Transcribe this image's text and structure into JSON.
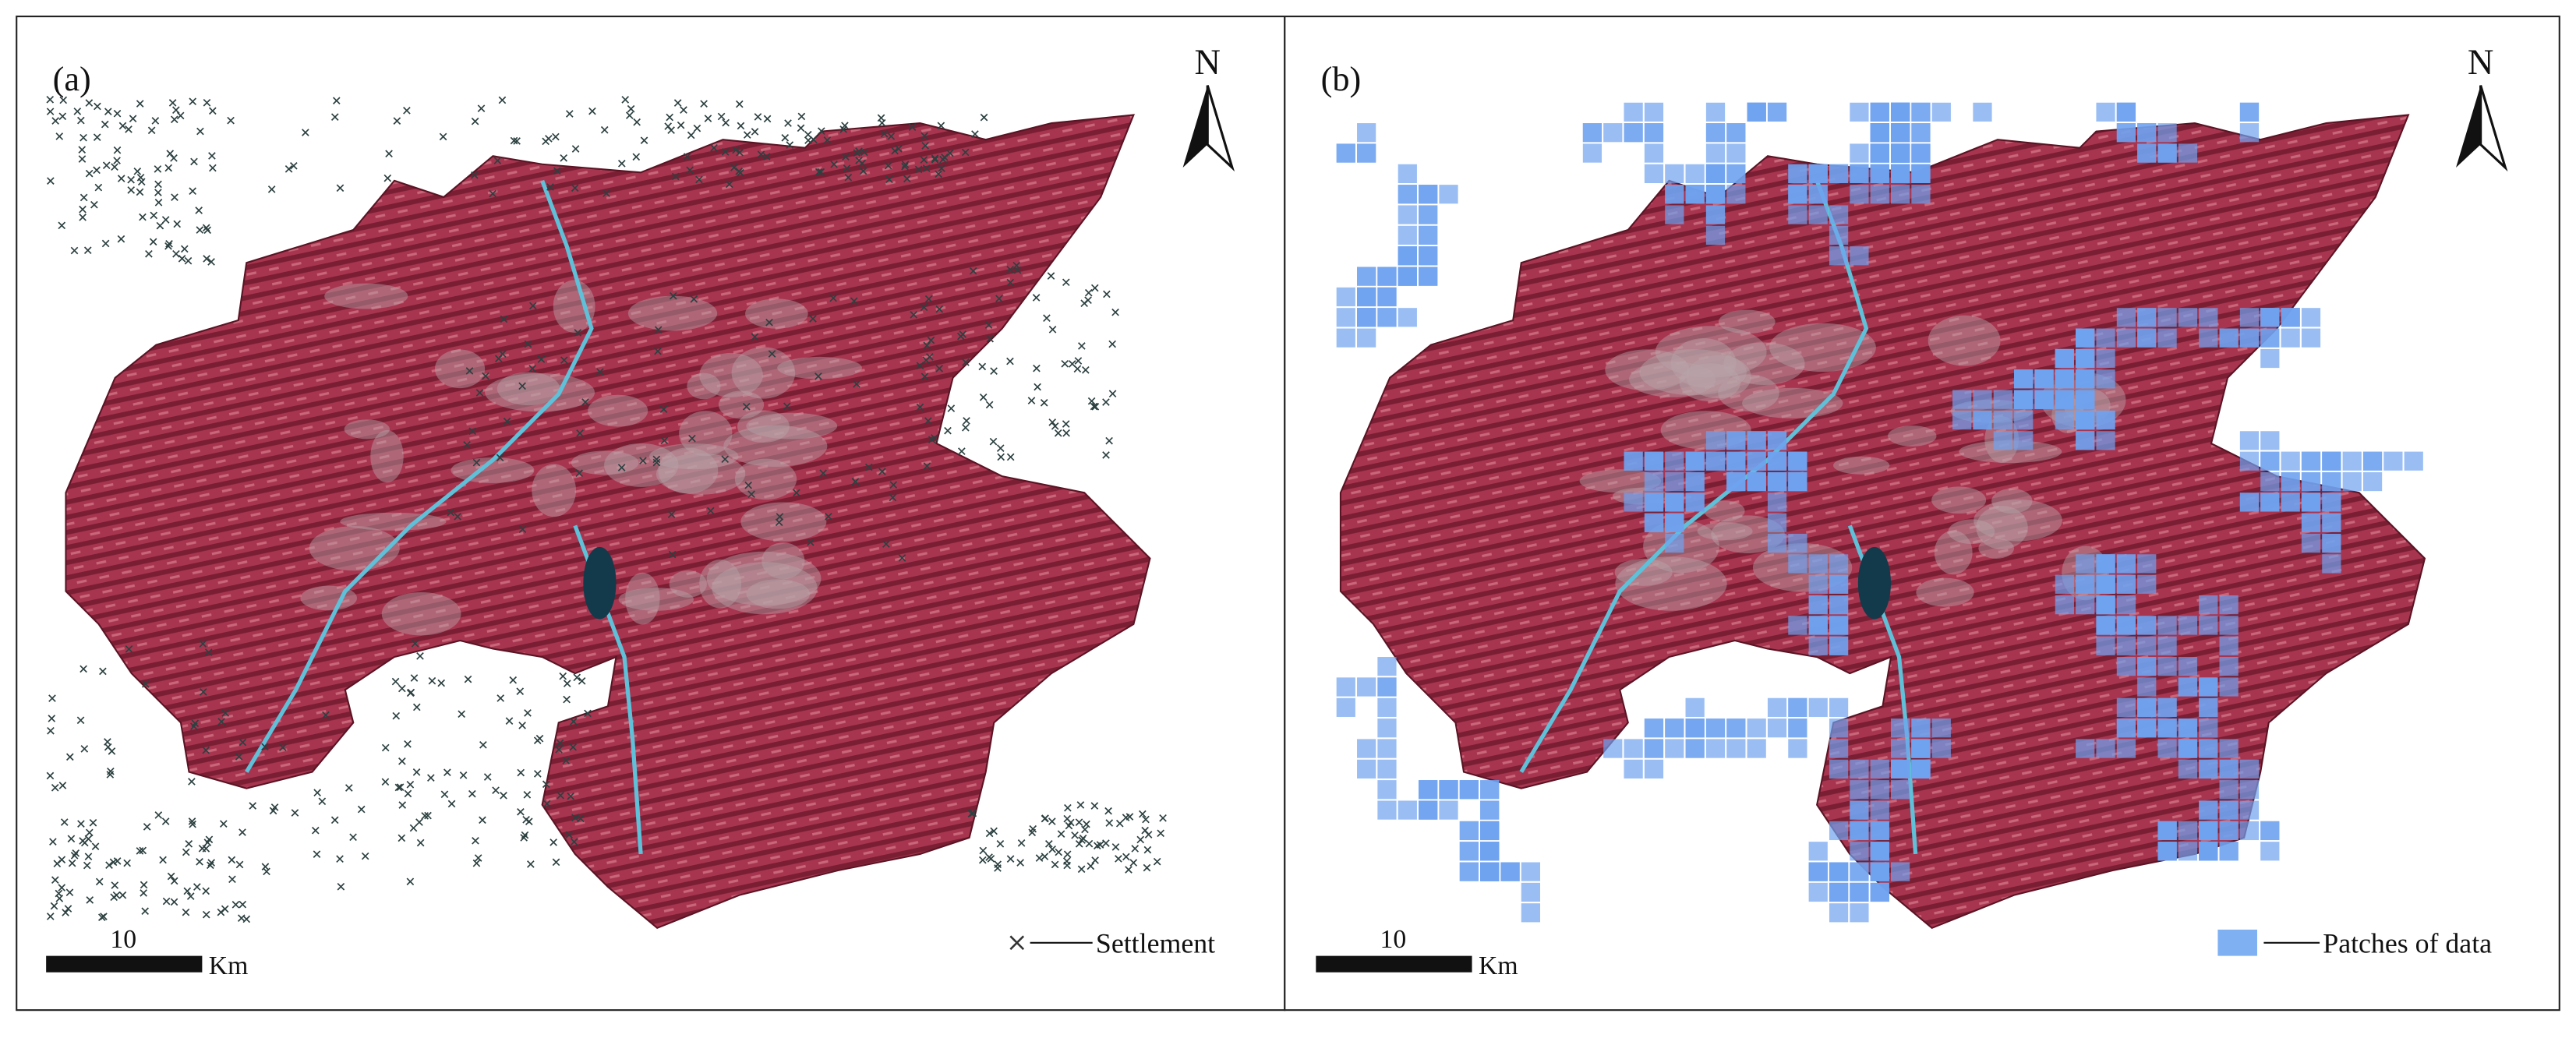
{
  "panels": [
    {
      "label": "(a)",
      "north": "N",
      "scale_label": "10",
      "scale_unit": "Km",
      "legend": "Settlement"
    },
    {
      "label": "(b)",
      "north": "N",
      "scale_label": "10",
      "scale_unit": "Km",
      "legend": "Patches of data"
    }
  ]
}
